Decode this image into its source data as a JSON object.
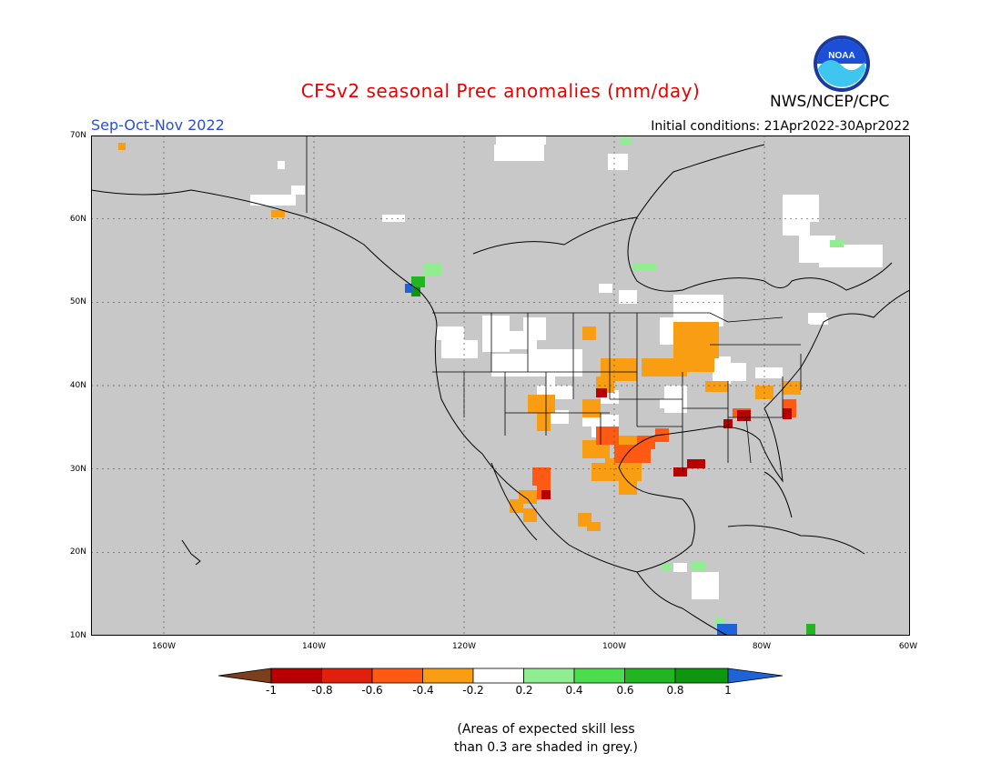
{
  "header": {
    "title": "CFSv2 seasonal Prec anomalies (mm/day)",
    "season": "Sep-Oct-Nov 2022",
    "initial_conditions": "Initial conditions: 21Apr2022-30Apr2022",
    "organization": "NWS/NCEP/CPC",
    "logo_text": "NOAA"
  },
  "map": {
    "lat_labels": [
      "70N",
      "60N",
      "50N",
      "40N",
      "30N",
      "20N",
      "10N"
    ],
    "lon_labels": [
      "160W",
      "140W",
      "120W",
      "100W",
      "80W",
      "60W"
    ],
    "mask_color": "#c8c8c8"
  },
  "legend": {
    "ticks": [
      "-1",
      "-0.8",
      "-0.6",
      "-0.4",
      "-0.2",
      "0.2",
      "0.4",
      "0.6",
      "0.8",
      "1"
    ],
    "colors": [
      "#7b3f1e",
      "#b80000",
      "#e0200c",
      "#ff5a14",
      "#f99e12",
      "#ffffff",
      "#90ee90",
      "#4ddc4d",
      "#22b422",
      "#0f960f",
      "#1e64d8"
    ]
  },
  "footnote": {
    "line1": "(Areas of expected skill less",
    "line2": "than 0.3 are shaded in grey.)"
  }
}
